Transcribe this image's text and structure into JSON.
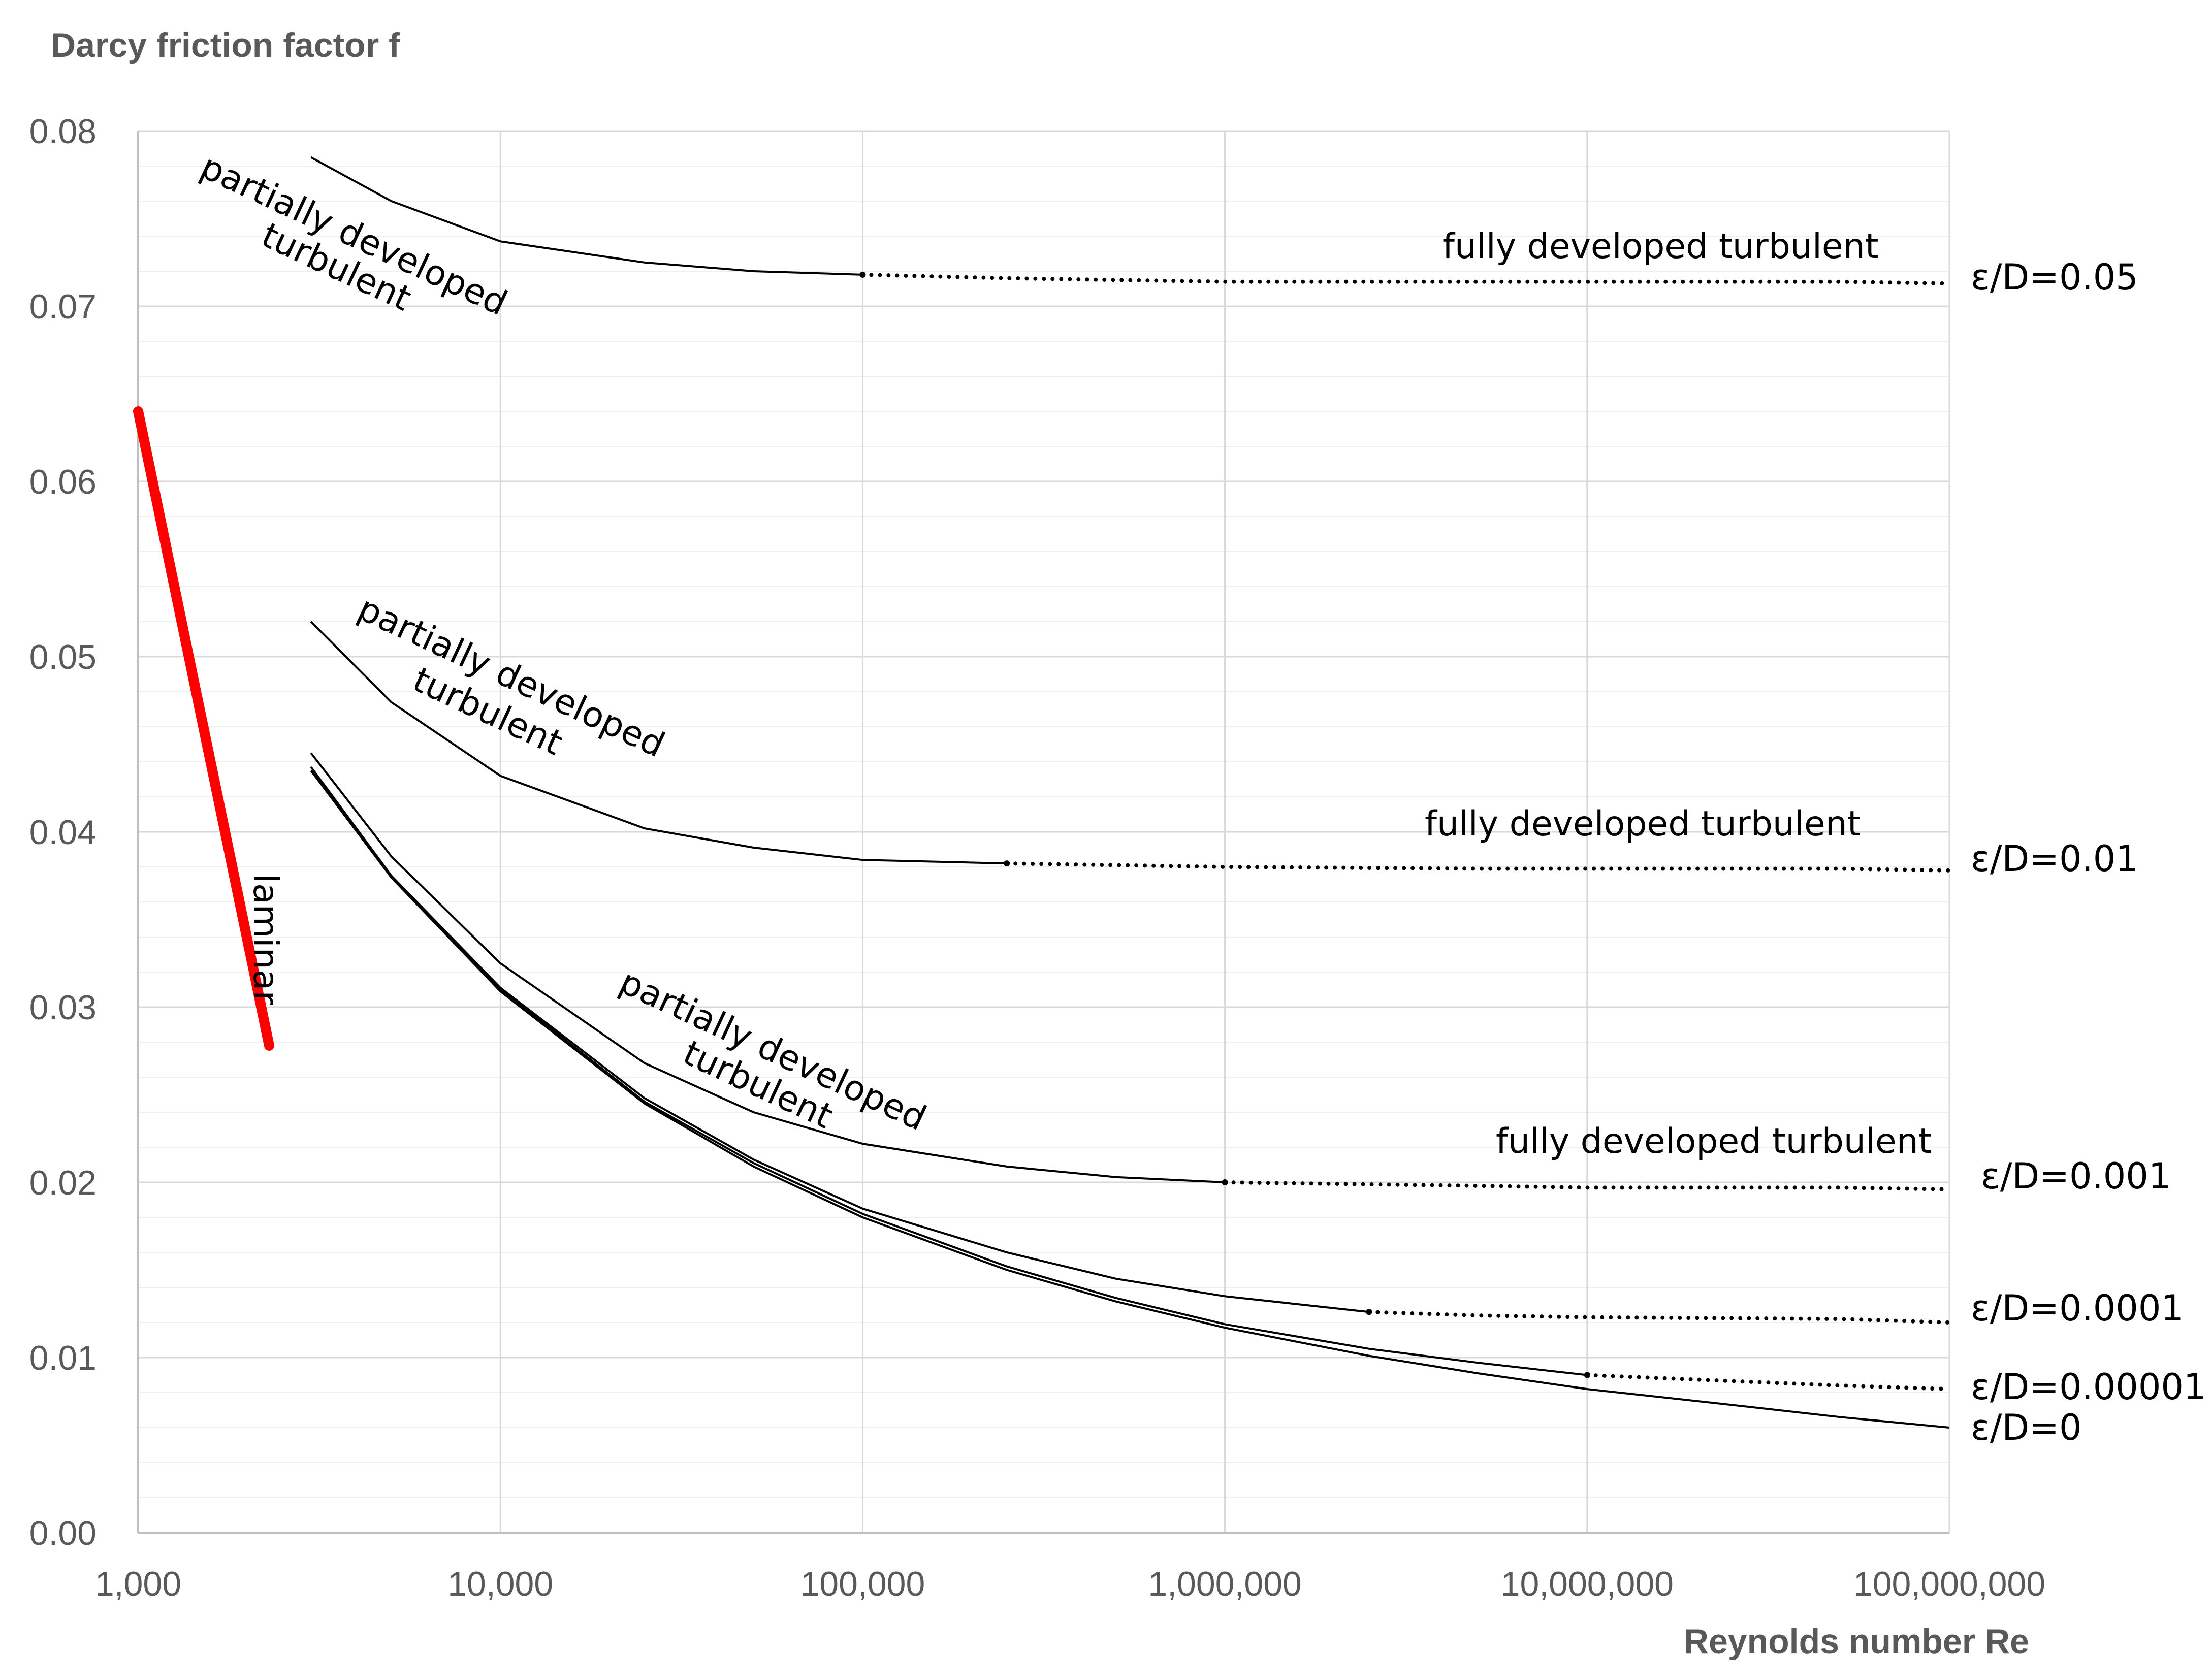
{
  "chart_data": {
    "type": "line",
    "title": "Darcy friction factor f",
    "xlabel": "Reynolds number Re",
    "x_scale": "log",
    "xlim": [
      1000,
      100000000
    ],
    "ylim": [
      0,
      0.08
    ],
    "x_ticks": [
      {
        "value": 1000,
        "label": "1,000"
      },
      {
        "value": 10000,
        "label": "10,000"
      },
      {
        "value": 100000,
        "label": "100,000"
      },
      {
        "value": 1000000,
        "label": "1,000,000"
      },
      {
        "value": 10000000,
        "label": "10,000,000"
      },
      {
        "value": 100000000,
        "label": "100,000,000"
      }
    ],
    "y_ticks": [
      {
        "value": 0,
        "label": "0.00"
      },
      {
        "value": 0.01,
        "label": "0.01"
      },
      {
        "value": 0.02,
        "label": "0.02"
      },
      {
        "value": 0.03,
        "label": "0.03"
      },
      {
        "value": 0.04,
        "label": "0.04"
      },
      {
        "value": 0.05,
        "label": "0.05"
      },
      {
        "value": 0.06,
        "label": "0.06"
      },
      {
        "value": 0.07,
        "label": "0.07"
      },
      {
        "value": 0.08,
        "label": "0.08"
      }
    ],
    "grid": true,
    "laminar": {
      "label": "laminar",
      "color": "#ff0000",
      "x": [
        1000,
        2300
      ],
      "y": [
        0.064,
        0.0278
      ]
    },
    "series": [
      {
        "name": "ε/D=0.05",
        "solid": {
          "x": [
            3000,
            5000,
            10000,
            25000,
            50000,
            100000
          ],
          "y": [
            0.0785,
            0.076,
            0.0737,
            0.0725,
            0.072,
            0.0718
          ]
        },
        "dotted": {
          "x": [
            100000,
            250000,
            500000,
            1000000,
            2500000,
            5000000,
            10000000,
            50000000,
            100000000
          ],
          "y": [
            0.0718,
            0.0716,
            0.0715,
            0.0714,
            0.0714,
            0.0714,
            0.0714,
            0.0714,
            0.0713
          ]
        }
      },
      {
        "name": "ε/D=0.01",
        "solid": {
          "x": [
            3000,
            5000,
            10000,
            25000,
            50000,
            100000,
            250000
          ],
          "y": [
            0.052,
            0.0474,
            0.0432,
            0.0402,
            0.0391,
            0.0384,
            0.0382
          ]
        },
        "dotted": {
          "x": [
            250000,
            500000,
            1000000,
            5000000,
            10000000,
            50000000,
            100000000
          ],
          "y": [
            0.0382,
            0.0381,
            0.038,
            0.0379,
            0.0379,
            0.0379,
            0.0378
          ]
        }
      },
      {
        "name": "ε/D=0.001",
        "solid": {
          "x": [
            3000,
            5000,
            10000,
            25000,
            50000,
            100000,
            250000,
            500000,
            1000000
          ],
          "y": [
            0.0445,
            0.0386,
            0.0325,
            0.0268,
            0.024,
            0.0222,
            0.0209,
            0.0203,
            0.02
          ]
        },
        "dotted": {
          "x": [
            1000000,
            5000000,
            10000000,
            50000000,
            100000000
          ],
          "y": [
            0.02,
            0.0198,
            0.0197,
            0.0197,
            0.0196
          ]
        }
      },
      {
        "name": "ε/D=0.0001",
        "solid": {
          "x": [
            3000,
            5000,
            10000,
            25000,
            50000,
            100000,
            250000,
            500000,
            1000000,
            2500000
          ],
          "y": [
            0.0437,
            0.0375,
            0.0311,
            0.0248,
            0.0213,
            0.0185,
            0.016,
            0.0145,
            0.0135,
            0.0126
          ]
        },
        "dotted": {
          "x": [
            2500000,
            5000000,
            10000000,
            50000000,
            100000000
          ],
          "y": [
            0.0126,
            0.0124,
            0.0123,
            0.0122,
            0.012
          ]
        }
      },
      {
        "name": "ε/D=0.00001",
        "solid": {
          "x": [
            3000,
            5000,
            10000,
            25000,
            50000,
            100000,
            250000,
            500000,
            1000000,
            2500000,
            5000000,
            10000000
          ],
          "y": [
            0.0435,
            0.0374,
            0.031,
            0.0246,
            0.0211,
            0.0182,
            0.0152,
            0.0134,
            0.0119,
            0.0105,
            0.0097,
            0.009
          ]
        },
        "dotted": {
          "x": [
            10000000,
            50000000,
            100000000
          ],
          "y": [
            0.009,
            0.0084,
            0.0082
          ]
        }
      },
      {
        "name": "ε/D=0",
        "solid": {
          "x": [
            3000,
            5000,
            10000,
            25000,
            50000,
            100000,
            250000,
            500000,
            1000000,
            2500000,
            5000000,
            10000000,
            25000000,
            50000000,
            100000000
          ],
          "y": [
            0.0435,
            0.0374,
            0.0309,
            0.0245,
            0.0209,
            0.018,
            0.015,
            0.0132,
            0.0117,
            0.0101,
            0.0091,
            0.0082,
            0.0073,
            0.0066,
            0.006
          ]
        },
        "dotted": null
      }
    ],
    "annotations": {
      "partially_developed_line1": "partially developed",
      "partially_developed_line2": "turbulent",
      "fully_developed": "fully developed turbulent"
    }
  }
}
